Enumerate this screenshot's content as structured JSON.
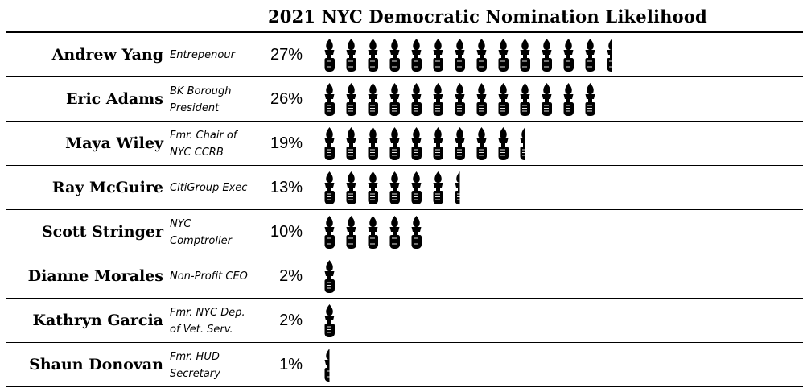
{
  "chart_data": {
    "type": "pictograph",
    "title": "2021 NYC Democratic Nomination Likelihood",
    "unit_icon": "torch-hand-icon",
    "rows": [
      {
        "name": "Andrew Yang",
        "role": "Entrepenour",
        "value": 27,
        "label": "27%"
      },
      {
        "name": "Eric Adams",
        "role": "BK Borough\nPresident",
        "value": 26,
        "label": "26%"
      },
      {
        "name": "Maya Wiley",
        "role": "Fmr. Chair of\nNYC CCRB",
        "value": 19,
        "label": "19%"
      },
      {
        "name": "Ray McGuire",
        "role": "CitiGroup Exec",
        "value": 13,
        "label": "13%"
      },
      {
        "name": "Scott Stringer",
        "role": "NYC\nComptroller",
        "value": 10,
        "label": "10%"
      },
      {
        "name": "Dianne Morales",
        "role": "Non-Profit CEO",
        "value": 2,
        "label": "2%"
      },
      {
        "name": "Kathryn Garcia",
        "role": "Fmr. NYC Dep.\nof Vet. Serv.",
        "value": 2,
        "label": "2%"
      },
      {
        "name": "Shaun Donovan",
        "role": "Fmr. HUD\nSecretary",
        "value": 1,
        "label": "1%"
      }
    ],
    "icon_color": "#000000"
  }
}
